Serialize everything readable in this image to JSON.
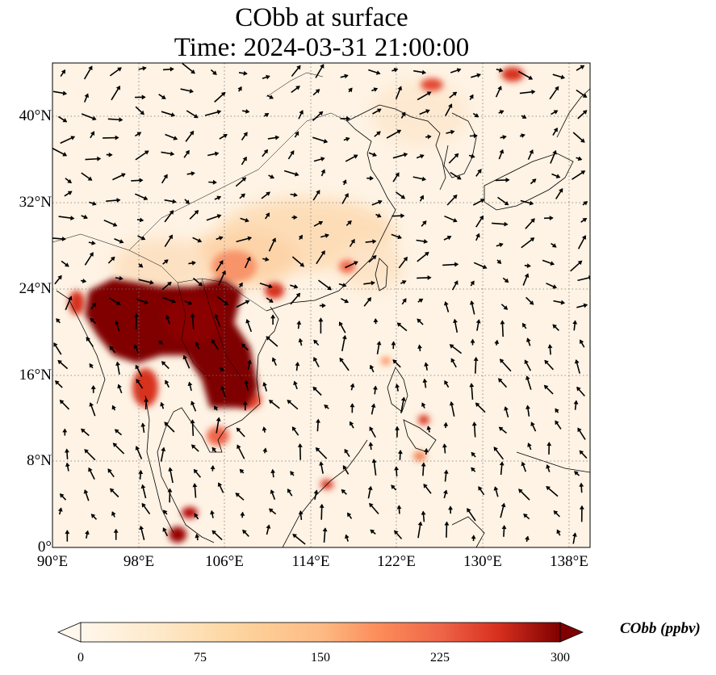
{
  "title": {
    "line1": "CObb at surface",
    "line2": "Time: 2024-03-31 21:00:00"
  },
  "map": {
    "lon_range": [
      90,
      140
    ],
    "lat_range": [
      0,
      45
    ],
    "lon_ticks": [
      "90°E",
      "98°E",
      "106°E",
      "114°E",
      "122°E",
      "130°E",
      "138°E"
    ],
    "lat_ticks": [
      "0°",
      "8°N",
      "16°N",
      "24°N",
      "32°N",
      "40°N"
    ],
    "gridlines": true
  },
  "colorbar": {
    "label": "CObb (ppbv)",
    "ticks": [
      "0",
      "75",
      "150",
      "225",
      "300"
    ],
    "range": [
      0,
      300
    ],
    "extend": "both",
    "colormap": "OrRd"
  },
  "chart_data": {
    "type": "heatmap",
    "field": "CObb",
    "units": "ppbv",
    "clim": [
      0,
      300
    ],
    "vectors": "surface wind"
  }
}
